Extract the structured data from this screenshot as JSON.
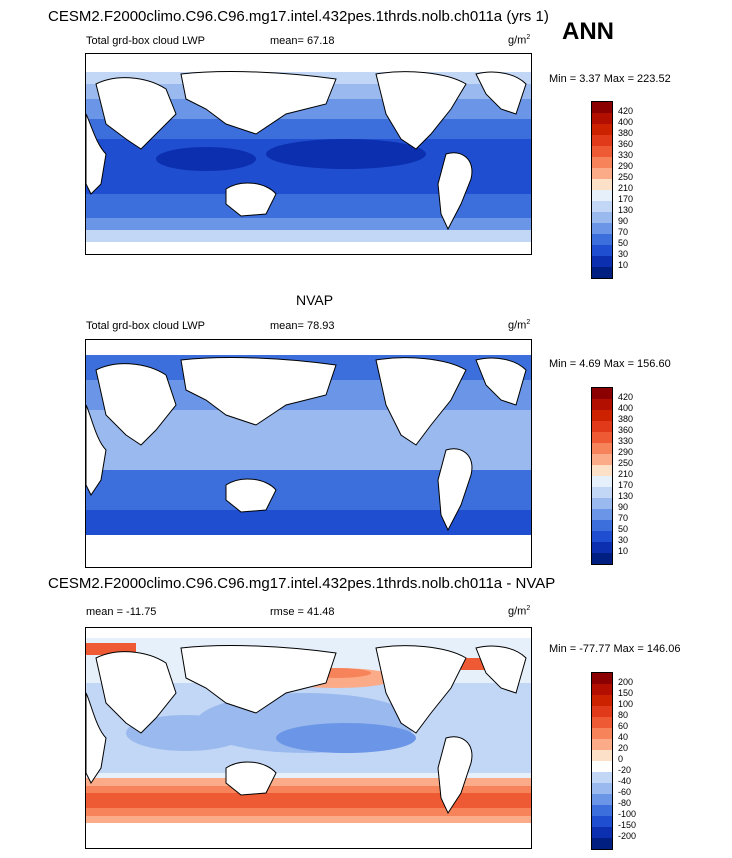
{
  "page": {
    "main_title": "CESM2.F2000climo.C96.C96.mg17.intel.432pes.1thrds.nolb.ch011a (yrs 1)",
    "season": "ANN",
    "mid_title": "NVAP",
    "diff_title": "CESM2.F2000climo.C96.C96.mg17.intel.432pes.1thrds.nolb.ch011a - NVAP"
  },
  "panels": [
    {
      "left_label": "Total grd-box cloud LWP",
      "center_label": "mean=  67.18",
      "unit": "g/m",
      "unit_sup": "2",
      "minmax": "Min =   3.37 Max = 223.52"
    },
    {
      "left_label": "Total grd-box cloud LWP",
      "center_label": "mean=  78.93",
      "unit": "g/m",
      "unit_sup": "2",
      "minmax": "Min =   4.69 Max = 156.60"
    },
    {
      "left_label": "mean = -11.75",
      "center_label": "rmse =  41.48",
      "unit": "g/m",
      "unit_sup": "2",
      "minmax": "Min = -77.77 Max = 146.06"
    }
  ],
  "colorbars": {
    "abs_labels": [
      "420",
      "400",
      "380",
      "360",
      "330",
      "290",
      "250",
      "210",
      "170",
      "130",
      "90",
      "70",
      "50",
      "30",
      "10"
    ],
    "abs_colors": [
      "#8b0000",
      "#b30f00",
      "#cc2200",
      "#e03a1a",
      "#ee5a33",
      "#f7835a",
      "#fbab88",
      "#fde0c8",
      "#e6f0fb",
      "#c2d6f5",
      "#9ab9ee",
      "#6b95e6",
      "#3d6fdc",
      "#1f4fd0",
      "#0c2fb0",
      "#001f80"
    ],
    "diff_labels": [
      "200",
      "150",
      "100",
      "80",
      "60",
      "40",
      "20",
      "0",
      "-20",
      "-40",
      "-60",
      "-80",
      "-100",
      "-150",
      "-200"
    ],
    "diff_colors": [
      "#8b0000",
      "#b30f00",
      "#cc2200",
      "#e03a1a",
      "#ee5a33",
      "#f7835a",
      "#fbab88",
      "#fde0c8",
      "#ffffff",
      "#c2d6f5",
      "#9ab9ee",
      "#6b95e6",
      "#3d6fdc",
      "#1f4fd0",
      "#0c2fb0",
      "#001f80"
    ]
  },
  "chart_data": [
    {
      "type": "heatmap",
      "title": "CESM2.F2000climo.C96.C96.mg17.intel.432pes.1thrds.nolb.ch011a (yrs 1)",
      "variable": "Total grd-box cloud LWP",
      "units": "g/m2",
      "mean": 67.18,
      "min": 3.37,
      "max": 223.52,
      "contour_levels": [
        10,
        30,
        50,
        70,
        90,
        130,
        170,
        210,
        250,
        290,
        330,
        360,
        380,
        400,
        420
      ]
    },
    {
      "type": "heatmap",
      "title": "NVAP",
      "variable": "Total grd-box cloud LWP",
      "units": "g/m2",
      "mean": 78.93,
      "min": 4.69,
      "max": 156.6,
      "contour_levels": [
        10,
        30,
        50,
        70,
        90,
        130,
        170,
        210,
        250,
        290,
        330,
        360,
        380,
        400,
        420
      ]
    },
    {
      "type": "heatmap",
      "title": "CESM2.F2000climo.C96.C96.mg17.intel.432pes.1thrds.nolb.ch011a - NVAP",
      "units": "g/m2",
      "mean": -11.75,
      "rmse": 41.48,
      "min": -77.77,
      "max": 146.06,
      "contour_levels": [
        -200,
        -150,
        -100,
        -80,
        -60,
        -40,
        -20,
        0,
        20,
        40,
        60,
        80,
        100,
        150,
        200
      ]
    }
  ]
}
